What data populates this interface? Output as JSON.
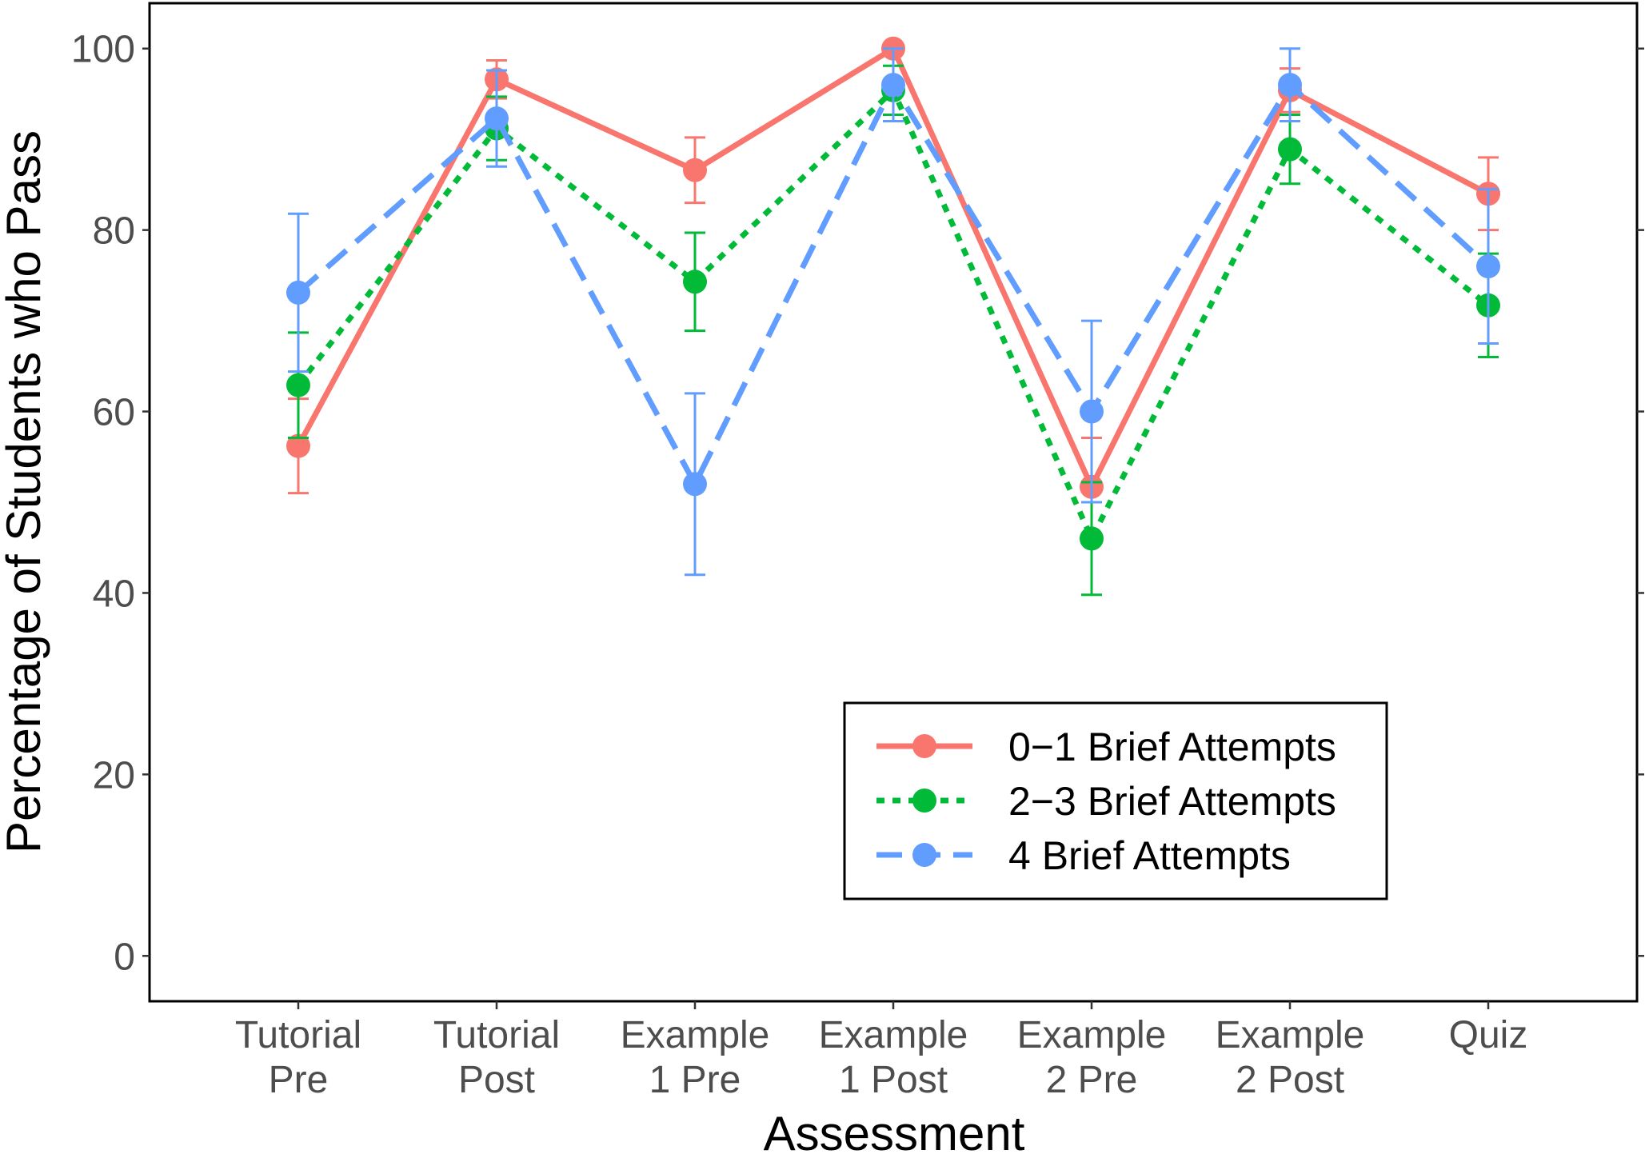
{
  "chart_data": {
    "type": "line",
    "xlabel": "Assessment",
    "ylabel": "Percentage of Students who Pass",
    "ylim": [
      -5,
      105
    ],
    "yticks": [
      0,
      20,
      40,
      60,
      80,
      100
    ],
    "categories": [
      [
        "Tutorial",
        "Pre"
      ],
      [
        "Tutorial",
        "Post"
      ],
      [
        "Example",
        "1 Pre"
      ],
      [
        "Example",
        "1 Post"
      ],
      [
        "Example",
        "2 Pre"
      ],
      [
        "Example",
        "2 Post"
      ],
      [
        "Quiz"
      ]
    ],
    "grid": false,
    "legend_position": "bottom-right",
    "series": [
      {
        "name": "0−1 Brief Attempts",
        "color": "#F8766D",
        "dash": "solid",
        "values": [
          56.2,
          96.6,
          86.6,
          100,
          51.7,
          95.4,
          84.0
        ],
        "err_low": [
          51.0,
          94.5,
          83.0,
          100,
          46.3,
          93.0,
          80.0
        ],
        "err_high": [
          61.4,
          98.7,
          90.2,
          100,
          57.1,
          97.8,
          88.0
        ]
      },
      {
        "name": "2−3 Brief Attempts",
        "color": "#00BA38",
        "dash": "dotted",
        "values": [
          62.9,
          91.2,
          74.3,
          95.4,
          46.0,
          88.9,
          71.7
        ],
        "err_low": [
          57.1,
          87.7,
          68.9,
          92.7,
          39.8,
          85.1,
          66.0
        ],
        "err_high": [
          68.7,
          94.7,
          79.7,
          98.1,
          52.2,
          92.7,
          77.4
        ]
      },
      {
        "name": "4 Brief Attempts",
        "color": "#619CFF",
        "dash": "dashed",
        "values": [
          73.1,
          92.3,
          52.0,
          96.0,
          60.0,
          96.0,
          76.0
        ],
        "err_low": [
          64.4,
          87.0,
          42.0,
          92.0,
          50.0,
          92.0,
          67.5
        ],
        "err_high": [
          81.8,
          97.6,
          62.0,
          100,
          70.0,
          100,
          84.5
        ]
      }
    ]
  }
}
